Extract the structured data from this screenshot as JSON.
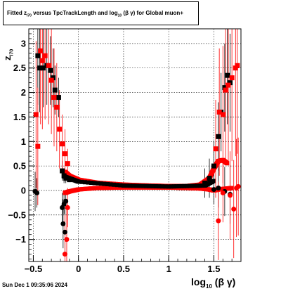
{
  "title": {
    "prefix": "Fitted  z",
    "sub1": "I70",
    "middle": "  versus TpcTrackLength and log",
    "sub2": "10",
    "suffix": " (β  γ) for Global muon+"
  },
  "timestamp": "Sun Dec  1 09:35:06 2024",
  "xlabel": {
    "main": "log",
    "sub": "10",
    "rest": " (β γ)"
  },
  "ylabel": {
    "main": "z",
    "sub": "I70"
  },
  "chart_data": {
    "type": "scatter",
    "title": "Fitted z_I70 versus TpcTrackLength and log10(β γ) for Global muon+",
    "xlabel": "log10(β γ)",
    "ylabel": "z_I70",
    "xlim": [
      -0.55,
      1.8
    ],
    "ylim": [
      -1.45,
      3.3
    ],
    "x_ticks": [
      -0.5,
      0,
      0.5,
      1,
      1.5
    ],
    "x_tick_labels": [
      "−0.5",
      "0",
      "0.5",
      "1",
      "1.5"
    ],
    "y_ticks": [
      -1,
      -0.5,
      0,
      0.5,
      1,
      1.5,
      2,
      2.5,
      3
    ],
    "y_tick_labels": [
      "−1",
      "−0.5",
      "0",
      "0.5",
      "1",
      "1.5",
      "2",
      "2.5",
      "3"
    ],
    "grid": true,
    "colors": {
      "series_black": "#000000",
      "series_red": "#ff0000"
    },
    "series": [
      {
        "marker": "square",
        "color": "#000000",
        "points": [
          {
            "x": -0.45,
            "y": 2.75,
            "err": 1.0
          },
          {
            "x": -0.43,
            "y": 2.5,
            "err": 0.9
          },
          {
            "x": -0.39,
            "y": 2.5,
            "err": 0.8
          },
          {
            "x": -0.35,
            "y": 2.55,
            "err": 0.8
          },
          {
            "x": -0.31,
            "y": 2.45,
            "err": 0.7
          },
          {
            "x": -0.28,
            "y": 2.3,
            "err": 0.6
          },
          {
            "x": -0.26,
            "y": 2.05,
            "err": 0.5
          },
          {
            "x": -0.22,
            "y": 1.9,
            "err": 0.4
          },
          {
            "x": -0.18,
            "y": 0.4,
            "err": 0.2
          },
          {
            "x": -0.16,
            "y": 0.3,
            "err": 0.15
          },
          {
            "x": -0.14,
            "y": 0.25,
            "err": 0.1
          },
          {
            "x": -0.1,
            "y": 0.22,
            "err": 0.05
          },
          {
            "x": 1.4,
            "y": 0.15,
            "err": 0.3
          },
          {
            "x": 1.45,
            "y": 0.25,
            "err": 0.4
          },
          {
            "x": 1.5,
            "y": 0.5,
            "err": 0.5
          },
          {
            "x": 1.55,
            "y": 1.1,
            "err": 0.7
          },
          {
            "x": 1.58,
            "y": 1.6,
            "err": 0.8
          },
          {
            "x": 1.62,
            "y": 2.1,
            "err": 0.9
          },
          {
            "x": 1.65,
            "y": 2.35,
            "err": 1.0
          },
          {
            "x": 1.68,
            "y": 2.2,
            "err": 1.0
          }
        ]
      },
      {
        "marker": "square",
        "color": "#ff0000",
        "points": [
          {
            "x": -0.47,
            "y": 1.55,
            "err": 1.5
          },
          {
            "x": -0.45,
            "y": 0.9,
            "err": 1.2
          },
          {
            "x": -0.42,
            "y": 2.85,
            "err": 1.5
          },
          {
            "x": -0.4,
            "y": 2.65,
            "err": 1.4
          },
          {
            "x": -0.37,
            "y": 2.75,
            "err": 1.3
          },
          {
            "x": -0.33,
            "y": 2.55,
            "err": 1.2
          },
          {
            "x": -0.3,
            "y": 2.25,
            "err": 1.1
          },
          {
            "x": -0.27,
            "y": 1.9,
            "err": 1.0
          },
          {
            "x": -0.24,
            "y": 1.7,
            "err": 0.9
          },
          {
            "x": -0.21,
            "y": 1.25,
            "err": 0.8
          },
          {
            "x": -0.18,
            "y": 0.95,
            "err": 0.6
          },
          {
            "x": -0.15,
            "y": 0.75,
            "err": 0.5
          },
          {
            "x": -0.12,
            "y": 0.55,
            "err": 0.3
          },
          {
            "x": 1.52,
            "y": 0.85,
            "err": 1.0
          },
          {
            "x": 1.56,
            "y": 1.6,
            "err": 1.3
          },
          {
            "x": 1.6,
            "y": 1.55,
            "err": 1.4
          },
          {
            "x": 1.63,
            "y": 2.05,
            "err": 1.5
          },
          {
            "x": 1.66,
            "y": 2.15,
            "err": 1.6
          },
          {
            "x": 1.7,
            "y": 2.3,
            "err": 1.7
          },
          {
            "x": 1.74,
            "y": 2.5,
            "err": 1.8
          },
          {
            "x": 1.76,
            "y": 2.55,
            "err": 1.8
          }
        ]
      },
      {
        "marker": "circle",
        "color": "#000000",
        "points": [
          {
            "x": -0.48,
            "y": -0.02,
            "err": 0.4
          },
          {
            "x": -0.46,
            "y": -0.05,
            "err": 0.3
          },
          {
            "x": -0.18,
            "y": -0.35,
            "err": 0.3
          },
          {
            "x": -0.16,
            "y": -0.28,
            "err": 0.2
          },
          {
            "x": -0.14,
            "y": -0.22,
            "err": 0.15
          },
          {
            "x": -0.17,
            "y": -0.68,
            "err": 0.5
          },
          {
            "x": -0.15,
            "y": -0.85,
            "err": 0.5
          },
          {
            "x": 1.5,
            "y": 0.02,
            "err": 0.3
          },
          {
            "x": 1.55,
            "y": 0.05,
            "err": 0.4
          },
          {
            "x": 1.62,
            "y": -0.02,
            "err": 0.5
          },
          {
            "x": 1.68,
            "y": -0.08,
            "err": 0.6
          }
        ]
      },
      {
        "marker": "circle",
        "color": "#ff0000",
        "points": [
          {
            "x": -0.15,
            "y": -1.3,
            "err": 0.8
          },
          {
            "x": -0.13,
            "y": -1.0,
            "err": 0.7
          },
          {
            "x": -0.12,
            "y": -0.35,
            "err": 0.4
          },
          {
            "x": 1.55,
            "y": -0.62,
            "err": 0.8
          },
          {
            "x": 1.6,
            "y": -0.05,
            "err": 0.6
          },
          {
            "x": 1.68,
            "y": -0.1,
            "err": 0.9
          },
          {
            "x": 1.72,
            "y": -0.38,
            "err": 1.0
          },
          {
            "x": 1.75,
            "y": 0.05,
            "err": 1.0
          },
          {
            "x": 1.77,
            "y": 0.08,
            "err": 1.0
          }
        ]
      }
    ],
    "bands": [
      {
        "name_hidden": true,
        "color": "#ff0000",
        "x": [
          -0.15,
          -0.1,
          0.0,
          0.2,
          0.5,
          0.8,
          1.0,
          1.2,
          1.35,
          1.45,
          1.5,
          1.55,
          1.6,
          1.65
        ],
        "y": [
          0.38,
          0.3,
          0.22,
          0.16,
          0.12,
          0.1,
          0.09,
          0.09,
          0.12,
          0.25,
          0.45,
          0.6,
          0.62,
          0.55
        ]
      },
      {
        "name_hidden": true,
        "color": "#ff0000",
        "x": [
          -0.15,
          -0.1,
          0.0,
          0.2,
          0.5,
          0.8,
          1.0,
          1.2,
          1.35,
          1.45,
          1.5,
          1.55,
          1.6,
          1.7
        ],
        "y": [
          -0.05,
          -0.02,
          0.02,
          0.05,
          0.06,
          0.06,
          0.06,
          0.05,
          0.04,
          0.02,
          0.0,
          0.02,
          0.03,
          0.05
        ]
      },
      {
        "name_hidden": true,
        "color": "#000000",
        "x": [
          -0.15,
          0.0,
          0.5,
          1.0,
          1.4,
          1.5
        ],
        "y": [
          0.28,
          0.18,
          0.1,
          0.08,
          0.1,
          0.2
        ]
      }
    ]
  }
}
